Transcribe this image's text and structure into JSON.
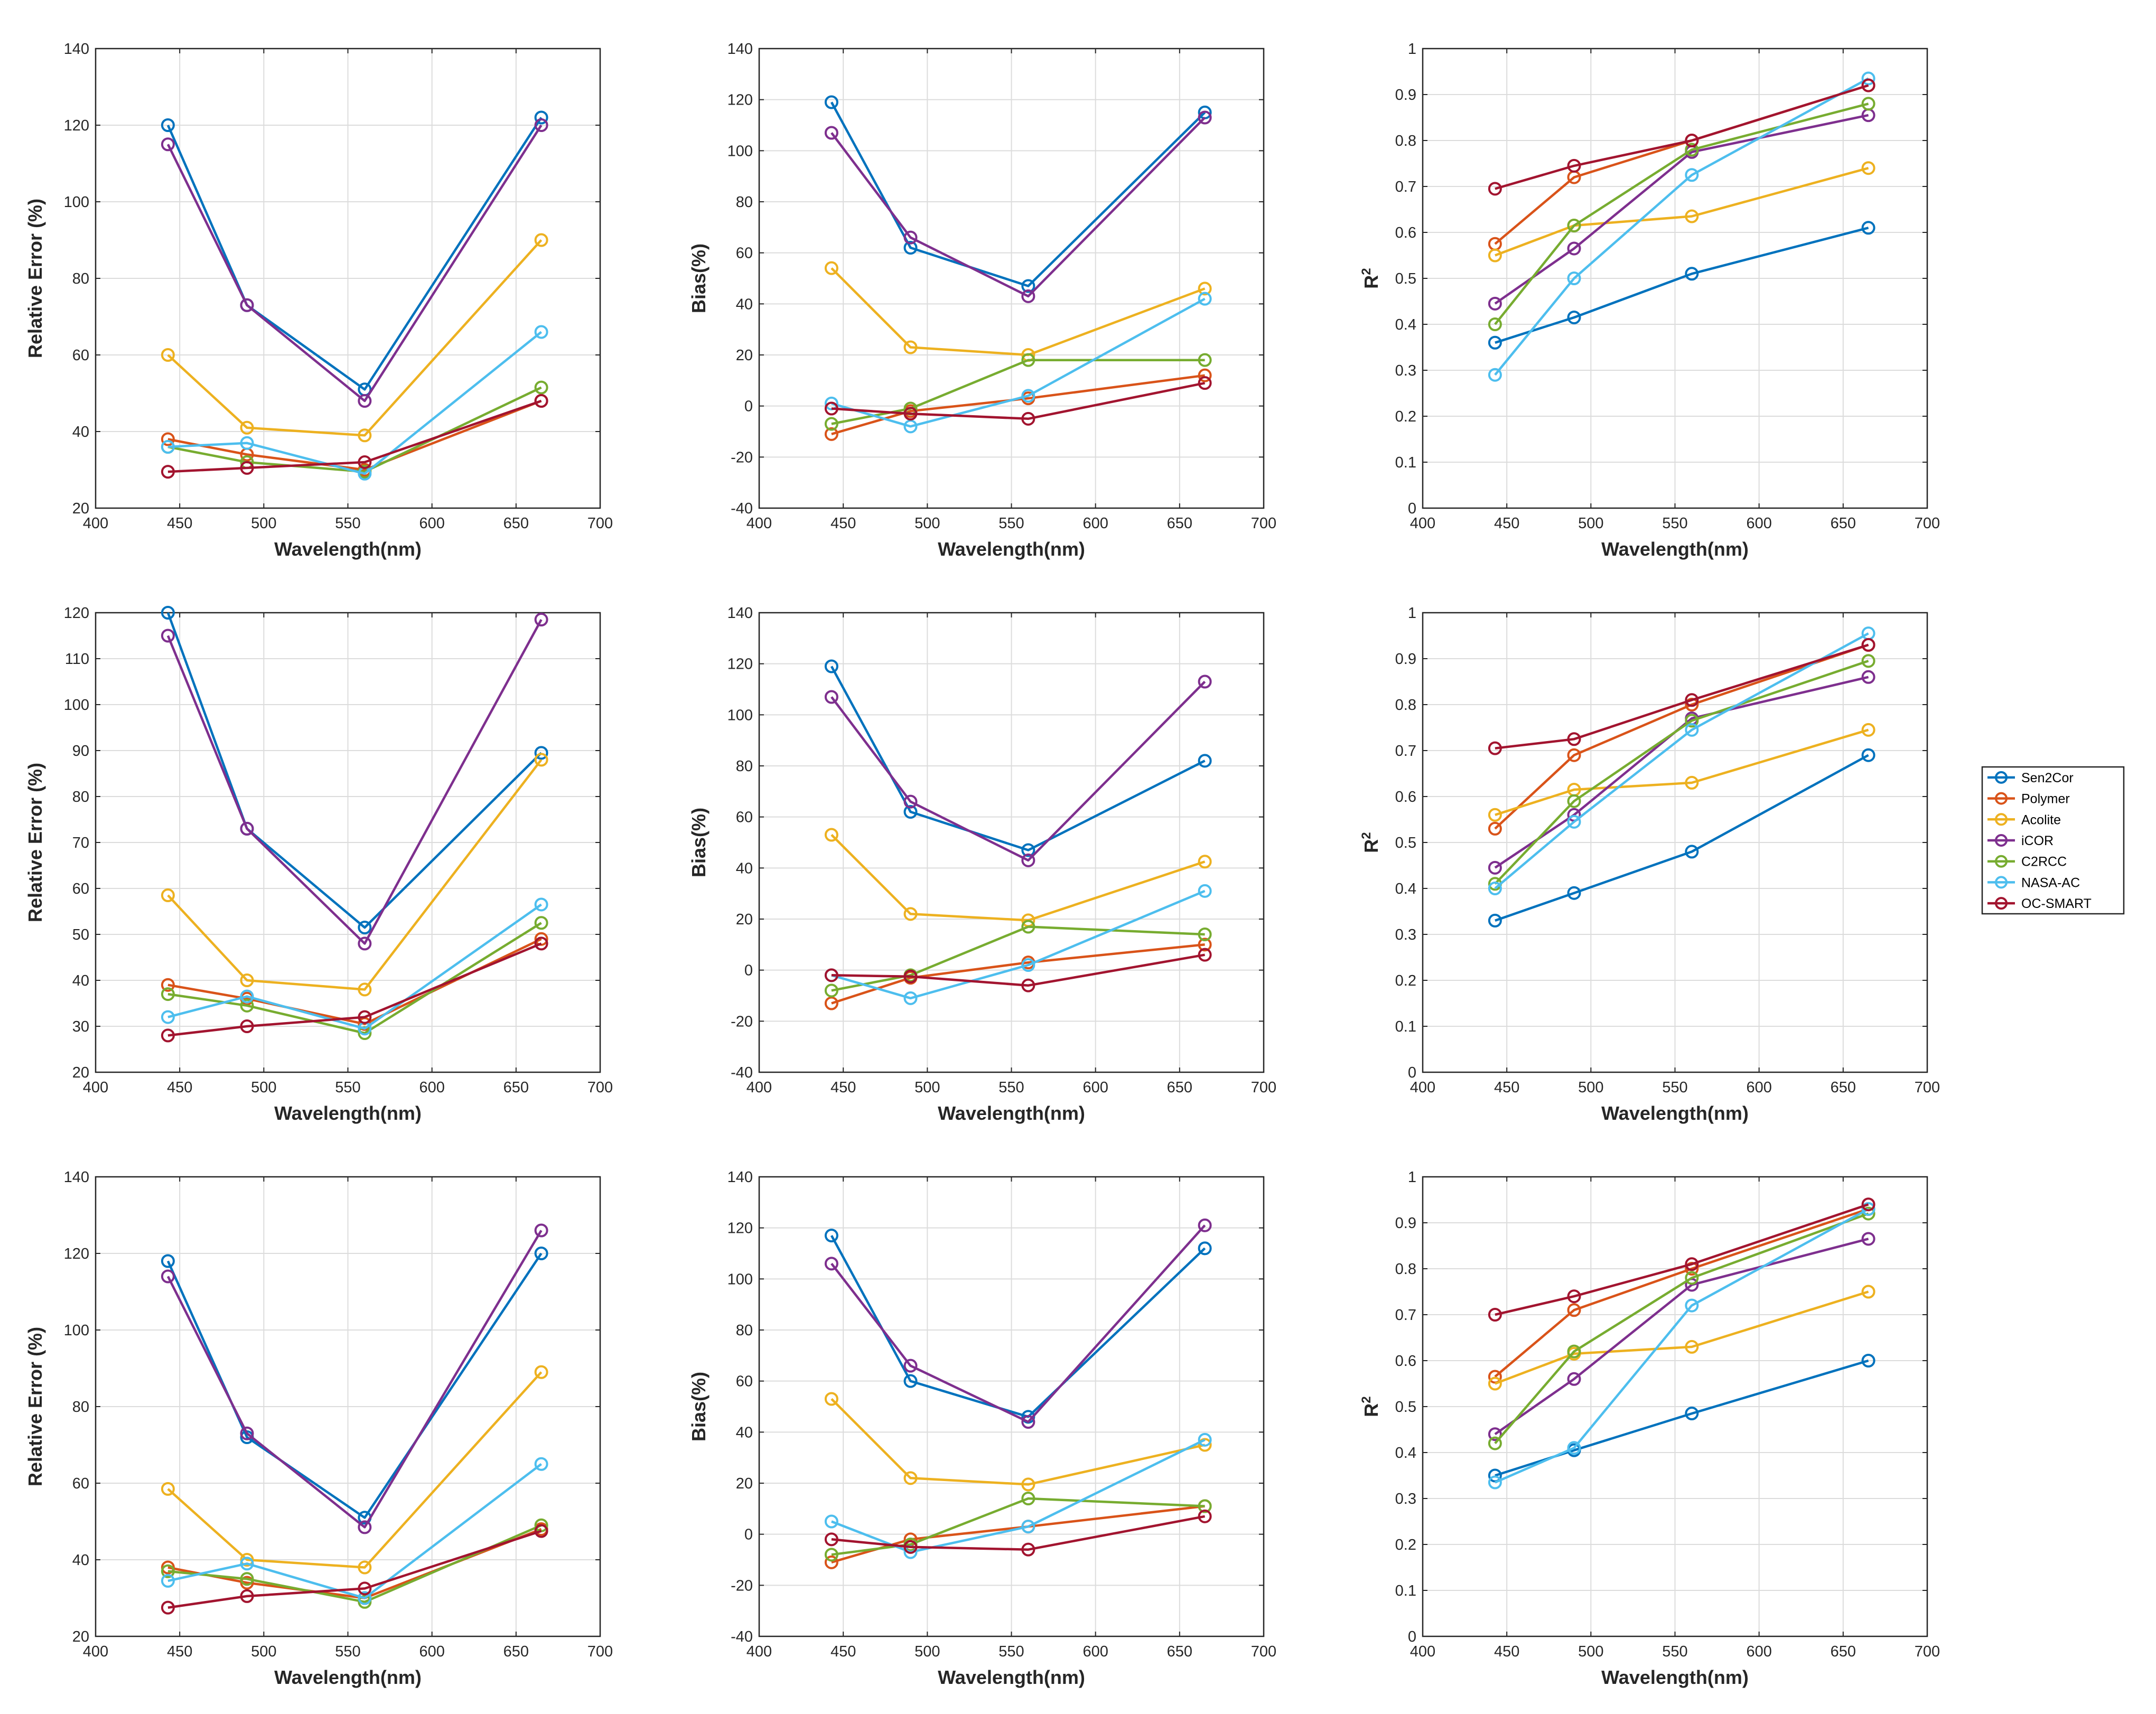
{
  "colors": {
    "Sen2Cor": "#0072BD",
    "Polymer": "#D95319",
    "Acolite": "#EDB120",
    "iCOR": "#7E2F8E",
    "C2RCC": "#77AC30",
    "NASA-AC": "#4DBEEE",
    "OC-SMART": "#A2142F"
  },
  "legend": {
    "entries": [
      "Sen2Cor",
      "Polymer",
      "Acolite",
      "iCOR",
      "C2RCC",
      "NASA-AC",
      "OC-SMART"
    ],
    "placement": "right"
  },
  "chart_data": [
    {
      "type": "line",
      "id": "r1c1",
      "xlabel": "Wavelength(nm)",
      "ylabel": "Relative Error (%)",
      "xlim": [
        400,
        700
      ],
      "xticks": [
        400,
        450,
        500,
        550,
        600,
        650,
        700
      ],
      "ylim": [
        20,
        140
      ],
      "yticks": [
        20,
        40,
        60,
        80,
        100,
        120,
        140
      ],
      "grid": true,
      "x": [
        443,
        490,
        560,
        665
      ],
      "series": [
        {
          "name": "Sen2Cor",
          "values": [
            120,
            73,
            51,
            122
          ]
        },
        {
          "name": "Polymer",
          "values": [
            38,
            34,
            30,
            48
          ]
        },
        {
          "name": "Acolite",
          "values": [
            60,
            41,
            39,
            90
          ]
        },
        {
          "name": "iCOR",
          "values": [
            115,
            73,
            48,
            120
          ]
        },
        {
          "name": "C2RCC",
          "values": [
            36,
            32,
            29.5,
            51.5
          ]
        },
        {
          "name": "NASA-AC",
          "values": [
            36,
            37,
            29,
            66
          ]
        },
        {
          "name": "OC-SMART",
          "values": [
            29.5,
            30.5,
            32,
            48
          ]
        }
      ]
    },
    {
      "type": "line",
      "id": "r1c2",
      "xlabel": "Wavelength(nm)",
      "ylabel": "Bias(%)",
      "xlim": [
        400,
        700
      ],
      "xticks": [
        400,
        450,
        500,
        550,
        600,
        650,
        700
      ],
      "ylim": [
        -40,
        140
      ],
      "yticks": [
        -40,
        -20,
        0,
        20,
        40,
        60,
        80,
        100,
        120,
        140
      ],
      "grid": true,
      "x": [
        443,
        490,
        560,
        665
      ],
      "series": [
        {
          "name": "Sen2Cor",
          "values": [
            119,
            62,
            47,
            115
          ]
        },
        {
          "name": "Polymer",
          "values": [
            -11,
            -2,
            3,
            12
          ]
        },
        {
          "name": "Acolite",
          "values": [
            54,
            23,
            20,
            46
          ]
        },
        {
          "name": "iCOR",
          "values": [
            107,
            66,
            43,
            113
          ]
        },
        {
          "name": "C2RCC",
          "values": [
            -7,
            -1,
            18,
            18
          ]
        },
        {
          "name": "NASA-AC",
          "values": [
            1,
            -8,
            4,
            42
          ]
        },
        {
          "name": "OC-SMART",
          "values": [
            -1,
            -3,
            -5,
            9
          ]
        }
      ]
    },
    {
      "type": "line",
      "id": "r1c3",
      "xlabel": "Wavelength(nm)",
      "ylabel": "R",
      "xlim": [
        400,
        700
      ],
      "xticks": [
        400,
        450,
        500,
        550,
        600,
        650,
        700
      ],
      "ylim": [
        0,
        1
      ],
      "yticks": [
        0,
        0.1,
        0.2,
        0.3,
        0.4,
        0.5,
        0.6,
        0.7,
        0.8,
        0.9,
        1
      ],
      "grid": true,
      "x": [
        443,
        490,
        560,
        665
      ],
      "series": [
        {
          "name": "Sen2Cor",
          "values": [
            0.36,
            0.415,
            0.51,
            0.61
          ]
        },
        {
          "name": "Polymer",
          "values": [
            0.575,
            0.72,
            0.8,
            0.92
          ]
        },
        {
          "name": "Acolite",
          "values": [
            0.55,
            0.615,
            0.635,
            0.74
          ]
        },
        {
          "name": "iCOR",
          "values": [
            0.445,
            0.565,
            0.775,
            0.855
          ]
        },
        {
          "name": "C2RCC",
          "values": [
            0.4,
            0.615,
            0.78,
            0.88
          ]
        },
        {
          "name": "NASA-AC",
          "values": [
            0.29,
            0.5,
            0.725,
            0.935
          ]
        },
        {
          "name": "OC-SMART",
          "values": [
            0.695,
            0.745,
            0.8,
            0.92
          ]
        }
      ]
    },
    {
      "type": "line",
      "id": "r2c1",
      "xlabel": "Wavelength(nm)",
      "ylabel": "Relative Error (%)",
      "xlim": [
        400,
        700
      ],
      "xticks": [
        400,
        450,
        500,
        550,
        600,
        650,
        700
      ],
      "ylim": [
        20,
        120
      ],
      "yticks": [
        20,
        30,
        40,
        50,
        60,
        70,
        80,
        90,
        100,
        110,
        120
      ],
      "grid": true,
      "x": [
        443,
        490,
        560,
        665
      ],
      "series": [
        {
          "name": "Sen2Cor",
          "values": [
            120,
            73,
            51.5,
            89.5
          ]
        },
        {
          "name": "Polymer",
          "values": [
            39,
            36,
            30.5,
            49
          ]
        },
        {
          "name": "Acolite",
          "values": [
            58.5,
            40,
            38,
            88
          ]
        },
        {
          "name": "iCOR",
          "values": [
            115,
            73,
            48,
            118.5
          ]
        },
        {
          "name": "C2RCC",
          "values": [
            37,
            34.5,
            28.5,
            52.5
          ]
        },
        {
          "name": "NASA-AC",
          "values": [
            32,
            36.5,
            29.5,
            56.5
          ]
        },
        {
          "name": "OC-SMART",
          "values": [
            28,
            30,
            32,
            48
          ]
        }
      ]
    },
    {
      "type": "line",
      "id": "r2c2",
      "xlabel": "Wavelength(nm)",
      "ylabel": "Bias(%)",
      "xlim": [
        400,
        700
      ],
      "xticks": [
        400,
        450,
        500,
        550,
        600,
        650,
        700
      ],
      "ylim": [
        -40,
        140
      ],
      "yticks": [
        -40,
        -20,
        0,
        20,
        40,
        60,
        80,
        100,
        120,
        140
      ],
      "grid": true,
      "x": [
        443,
        490,
        560,
        665
      ],
      "series": [
        {
          "name": "Sen2Cor",
          "values": [
            119,
            62,
            47,
            82
          ]
        },
        {
          "name": "Polymer",
          "values": [
            -13,
            -3,
            3,
            10
          ]
        },
        {
          "name": "Acolite",
          "values": [
            53,
            22,
            19.5,
            42.5
          ]
        },
        {
          "name": "iCOR",
          "values": [
            107,
            66,
            43,
            113
          ]
        },
        {
          "name": "C2RCC",
          "values": [
            -8,
            -2,
            17,
            14
          ]
        },
        {
          "name": "NASA-AC",
          "values": [
            -2,
            -11,
            2,
            31
          ]
        },
        {
          "name": "OC-SMART",
          "values": [
            -2,
            -2.5,
            -6,
            6
          ]
        }
      ]
    },
    {
      "type": "line",
      "id": "r2c3",
      "xlabel": "Wavelength(nm)",
      "ylabel": "R",
      "xlim": [
        400,
        700
      ],
      "xticks": [
        400,
        450,
        500,
        550,
        600,
        650,
        700
      ],
      "ylim": [
        0,
        1
      ],
      "yticks": [
        0,
        0.1,
        0.2,
        0.3,
        0.4,
        0.5,
        0.6,
        0.7,
        0.8,
        0.9,
        1
      ],
      "grid": true,
      "x": [
        443,
        490,
        560,
        665
      ],
      "series": [
        {
          "name": "Sen2Cor",
          "values": [
            0.33,
            0.39,
            0.48,
            0.69
          ]
        },
        {
          "name": "Polymer",
          "values": [
            0.53,
            0.69,
            0.8,
            0.93
          ]
        },
        {
          "name": "Acolite",
          "values": [
            0.56,
            0.615,
            0.63,
            0.745
          ]
        },
        {
          "name": "iCOR",
          "values": [
            0.445,
            0.56,
            0.77,
            0.86
          ]
        },
        {
          "name": "C2RCC",
          "values": [
            0.41,
            0.59,
            0.765,
            0.895
          ]
        },
        {
          "name": "NASA-AC",
          "values": [
            0.4,
            0.545,
            0.745,
            0.955
          ]
        },
        {
          "name": "OC-SMART",
          "values": [
            0.705,
            0.725,
            0.81,
            0.93
          ]
        }
      ]
    },
    {
      "type": "line",
      "id": "r3c1",
      "xlabel": "Wavelength(nm)",
      "ylabel": "Relative Error (%)",
      "xlim": [
        400,
        700
      ],
      "xticks": [
        400,
        450,
        500,
        550,
        600,
        650,
        700
      ],
      "ylim": [
        20,
        140
      ],
      "yticks": [
        20,
        40,
        60,
        80,
        100,
        120,
        140
      ],
      "grid": true,
      "x": [
        443,
        490,
        560,
        665
      ],
      "series": [
        {
          "name": "Sen2Cor",
          "values": [
            118,
            72,
            51,
            120
          ]
        },
        {
          "name": "Polymer",
          "values": [
            38,
            34,
            30,
            48
          ]
        },
        {
          "name": "Acolite",
          "values": [
            58.5,
            40,
            38,
            89
          ]
        },
        {
          "name": "iCOR",
          "values": [
            114,
            73,
            48.5,
            126
          ]
        },
        {
          "name": "C2RCC",
          "values": [
            37,
            35,
            29,
            49
          ]
        },
        {
          "name": "NASA-AC",
          "values": [
            34.5,
            39,
            30,
            65
          ]
        },
        {
          "name": "OC-SMART",
          "values": [
            27.5,
            30.5,
            32.5,
            47.5
          ]
        }
      ]
    },
    {
      "type": "line",
      "id": "r3c2",
      "xlabel": "Wavelength(nm)",
      "ylabel": "Bias(%)",
      "xlim": [
        400,
        700
      ],
      "xticks": [
        400,
        450,
        500,
        550,
        600,
        650,
        700
      ],
      "ylim": [
        -40,
        140
      ],
      "yticks": [
        -40,
        -20,
        0,
        20,
        40,
        60,
        80,
        100,
        120,
        140
      ],
      "grid": true,
      "x": [
        443,
        490,
        560,
        665
      ],
      "series": [
        {
          "name": "Sen2Cor",
          "values": [
            117,
            60,
            46,
            112
          ]
        },
        {
          "name": "Polymer",
          "values": [
            -11,
            -2,
            3,
            11
          ]
        },
        {
          "name": "Acolite",
          "values": [
            53,
            22,
            19.5,
            35
          ]
        },
        {
          "name": "iCOR",
          "values": [
            106,
            66,
            44,
            121
          ]
        },
        {
          "name": "C2RCC",
          "values": [
            -8,
            -4,
            14,
            11
          ]
        },
        {
          "name": "NASA-AC",
          "values": [
            5,
            -7,
            3,
            37
          ]
        },
        {
          "name": "OC-SMART",
          "values": [
            -2,
            -5,
            -6,
            7
          ]
        }
      ]
    },
    {
      "type": "line",
      "id": "r3c3",
      "xlabel": "Wavelength(nm)",
      "ylabel": "R",
      "xlim": [
        400,
        700
      ],
      "xticks": [
        400,
        450,
        500,
        550,
        600,
        650,
        700
      ],
      "ylim": [
        0,
        1
      ],
      "yticks": [
        0,
        0.1,
        0.2,
        0.3,
        0.4,
        0.5,
        0.6,
        0.7,
        0.8,
        0.9,
        1
      ],
      "grid": true,
      "x": [
        443,
        490,
        560,
        665
      ],
      "series": [
        {
          "name": "Sen2Cor",
          "values": [
            0.35,
            0.405,
            0.485,
            0.6
          ]
        },
        {
          "name": "Polymer",
          "values": [
            0.565,
            0.71,
            0.8,
            0.93
          ]
        },
        {
          "name": "Acolite",
          "values": [
            0.55,
            0.615,
            0.63,
            0.75
          ]
        },
        {
          "name": "iCOR",
          "values": [
            0.44,
            0.56,
            0.765,
            0.865
          ]
        },
        {
          "name": "C2RCC",
          "values": [
            0.42,
            0.62,
            0.78,
            0.92
          ]
        },
        {
          "name": "NASA-AC",
          "values": [
            0.335,
            0.41,
            0.72,
            0.93
          ]
        },
        {
          "name": "OC-SMART",
          "values": [
            0.7,
            0.74,
            0.81,
            0.94
          ]
        }
      ]
    }
  ]
}
